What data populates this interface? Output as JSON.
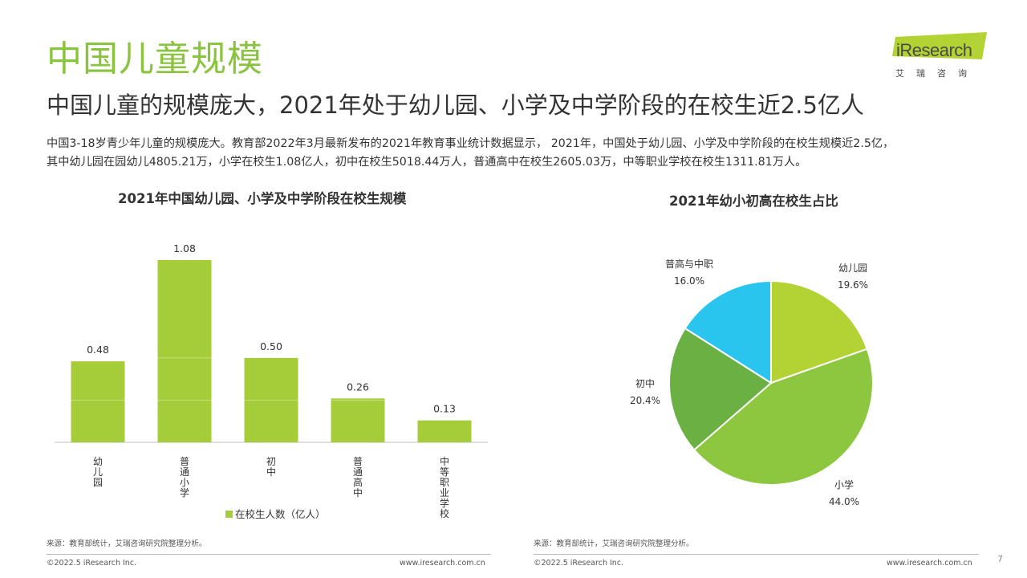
{
  "header": {
    "title": "中国儿童规模",
    "subtitle": "中国儿童的规模庞大，2021年处于幼儿园、小学及中学阶段的在校生近2.5亿人",
    "desc_line1": "中国3-18岁青少年儿童的规模庞大。教育部2022年3月最新发布的2021年教育事业统计数据显示， 2021年，中国处于幼儿园、小学及中学阶段的在校生规模近2.5亿，",
    "desc_line2": "其中幼儿园在园幼儿4805.21万，小学在校生1.08亿人，初中在校生5018.44万人，普通高中在校生2605.03万，中等职业学校在校生1311.81万人。"
  },
  "logo": {
    "text": "iResearch",
    "sub": "艾瑞咨询"
  },
  "colors": {
    "title_green": "#8ac43f",
    "bar_green": "#a5cd39",
    "pie_light": "#b3d334",
    "pie_mid": "#8dc63f",
    "pie_dark": "#6ab043",
    "pie_blue": "#29c5ef"
  },
  "chart_data": [
    {
      "type": "bar",
      "title": "2021年中国幼儿园、小学及中学阶段在校生规模",
      "categories": [
        "幼儿园",
        "普通小学",
        "初中",
        "普通高中",
        "中等职业学校"
      ],
      "series": [
        {
          "name": "在校生人数（亿人）",
          "values": [
            0.48,
            1.08,
            0.5,
            0.26,
            0.13
          ]
        }
      ],
      "value_labels": [
        "0.48",
        "1.08",
        "0.50",
        "0.26",
        "0.13"
      ],
      "ylim": [
        0,
        1.2
      ],
      "legend_position": "bottom"
    },
    {
      "type": "pie",
      "title": "2021年幼小初高在校生占比",
      "slices": [
        {
          "label": "幼儿园",
          "value": 19.6,
          "pct": "19.6%"
        },
        {
          "label": "小学",
          "value": 44.0,
          "pct": "44.0%"
        },
        {
          "label": "初中",
          "value": 20.4,
          "pct": "20.4%"
        },
        {
          "label": "普高与中职",
          "value": 16.0,
          "pct": "16.0%"
        }
      ]
    }
  ],
  "footer": {
    "source_left": "来源：教育部统计，艾瑞咨询研究院整理分析。",
    "source_right": "来源：教育部统计，艾瑞咨询研究院整理分析。",
    "copyright_left": "©2022.5 iResearch Inc.",
    "copyright_right": "©2022.5 iResearch Inc.",
    "url_left": "www.iresearch.com.cn",
    "url_right": "www.iresearch.com.cn",
    "page": "7"
  }
}
